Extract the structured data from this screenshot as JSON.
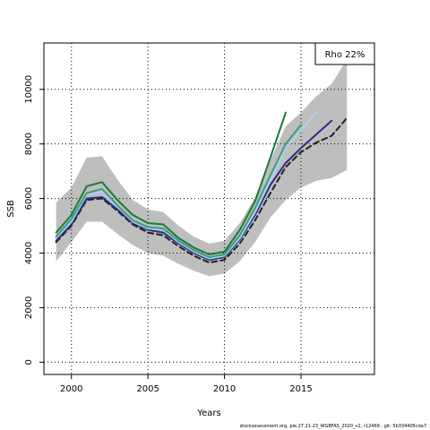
{
  "footer": "stockassessment.org, ple.27.21-23_WGBFAS_2020_v2, r12469 , git: 5b334405cda7",
  "chart_data": {
    "type": "line",
    "xlabel": "Years",
    "ylabel": "SSB",
    "xlim": [
      1998.2,
      2019.8
    ],
    "ylim": [
      -450,
      11700
    ],
    "xticks": [
      2000,
      2005,
      2010,
      2015
    ],
    "yticks": [
      0,
      2000,
      4000,
      6000,
      8000,
      10000
    ],
    "grid": true,
    "legend": {
      "label": "Rho 22%",
      "position": "top-right"
    },
    "confidence_band": {
      "x": [
        1999,
        2000,
        2001,
        2002,
        2003,
        2004,
        2005,
        2006,
        2007,
        2008,
        2009,
        2010,
        2011,
        2012,
        2013,
        2014,
        2015,
        2016,
        2017,
        2018
      ],
      "upper": [
        5850,
        6400,
        7500,
        7550,
        6700,
        5950,
        5600,
        5500,
        5000,
        4600,
        4350,
        4450,
        5100,
        6050,
        7400,
        8650,
        9150,
        9750,
        10200,
        11100
      ],
      "lower": [
        3700,
        4400,
        5150,
        5150,
        4700,
        4300,
        4000,
        3900,
        3600,
        3350,
        3150,
        3250,
        3700,
        4400,
        5300,
        5950,
        6400,
        6650,
        6750,
        7050
      ]
    },
    "series": [
      {
        "color": "#222222",
        "dash": true,
        "x": [
          1999,
          2000,
          2001,
          2002,
          2003,
          2004,
          2005,
          2006,
          2007,
          2008,
          2009,
          2010,
          2011,
          2012,
          2013,
          2014,
          2015,
          2016,
          2017,
          2018
        ],
        "values": [
          4400,
          5000,
          5950,
          6000,
          5550,
          5050,
          4750,
          4650,
          4250,
          3900,
          3650,
          3750,
          4350,
          5200,
          6200,
          7150,
          7700,
          8050,
          8300,
          8950
        ]
      },
      {
        "color": "#2b2b87",
        "x": [
          1999,
          2000,
          2001,
          2002,
          2003,
          2004,
          2005,
          2006,
          2007,
          2008,
          2009,
          2010,
          2011,
          2012,
          2013,
          2014,
          2015,
          2016,
          2017
        ],
        "values": [
          4450,
          5050,
          6000,
          6050,
          5600,
          5100,
          4850,
          4750,
          4350,
          4000,
          3750,
          3850,
          4500,
          5400,
          6500,
          7300,
          7850,
          8350,
          8850
        ]
      },
      {
        "color": "#b0cef0",
        "x": [
          1999,
          2000,
          2001,
          2002,
          2003,
          2004,
          2005,
          2006,
          2007,
          2008,
          2009,
          2010,
          2011,
          2012,
          2013,
          2014,
          2015,
          2016
        ],
        "values": [
          4550,
          5150,
          6150,
          6250,
          5700,
          5150,
          4900,
          4850,
          4400,
          4050,
          3800,
          3900,
          4550,
          5500,
          6650,
          7850,
          8500,
          9150
        ]
      },
      {
        "color": "#3aa07a",
        "x": [
          1999,
          2000,
          2001,
          2002,
          2003,
          2004,
          2005,
          2006,
          2007,
          2008,
          2009,
          2010,
          2011,
          2012,
          2013,
          2014,
          2015
        ],
        "values": [
          4600,
          5250,
          6200,
          6350,
          5750,
          5200,
          4950,
          4900,
          4450,
          4100,
          3850,
          3950,
          4650,
          5650,
          6850,
          8000,
          8700
        ]
      },
      {
        "color": "#1a7a3a",
        "x": [
          1999,
          2000,
          2001,
          2002,
          2003,
          2004,
          2005,
          2006,
          2007,
          2008,
          2009,
          2010,
          2011,
          2012,
          2013,
          2014
        ],
        "values": [
          4750,
          5400,
          6450,
          6600,
          5950,
          5400,
          5100,
          5050,
          4550,
          4200,
          3950,
          4050,
          4850,
          5900,
          7500,
          9150
        ]
      }
    ]
  }
}
